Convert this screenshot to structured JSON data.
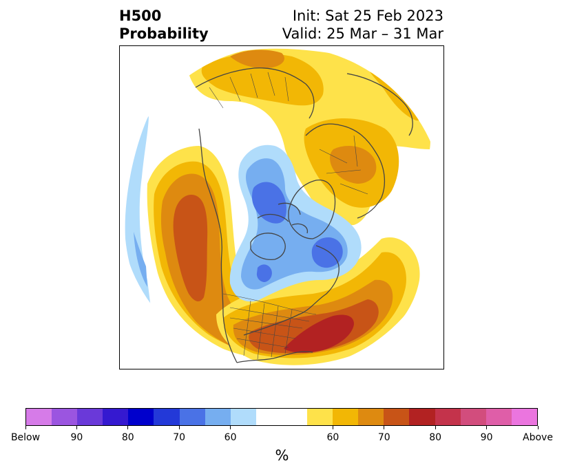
{
  "title": {
    "left_line1": "H500",
    "left_line2": "Probability",
    "right_line1": "Init: Sat 25 Feb 2023",
    "right_line2": "Valid: 25 Mar – 31 Mar"
  },
  "colorbar": {
    "unit": "%",
    "labels": [
      "Below",
      "90",
      "80",
      "70",
      "60",
      "60",
      "70",
      "80",
      "90",
      "Above"
    ],
    "below_colors": [
      "#d67be8",
      "#9b55e0",
      "#6a39d9",
      "#3519d0",
      "#0000cc",
      "#2339d8",
      "#4a72e6",
      "#76aef0",
      "#b0dcfb"
    ],
    "neutral_color": "#ffffff",
    "above_colors": [
      "#fee24a",
      "#f2b705",
      "#de8a10",
      "#c85417",
      "#b22222",
      "#c4334b",
      "#d24d7d",
      "#df5ea8",
      "#eb75df"
    ]
  },
  "map": {
    "projection": "polar stereographic (North Pole)",
    "colors": {
      "coast": "#444444",
      "above_60": "#fee24a",
      "above_70": "#f2b705",
      "above_80": "#de8a10",
      "above_90": "#c85417",
      "above_top": "#b22222",
      "below_60": "#b0dcfb",
      "below_70": "#76aef0",
      "below_80": "#4a72e6"
    }
  }
}
